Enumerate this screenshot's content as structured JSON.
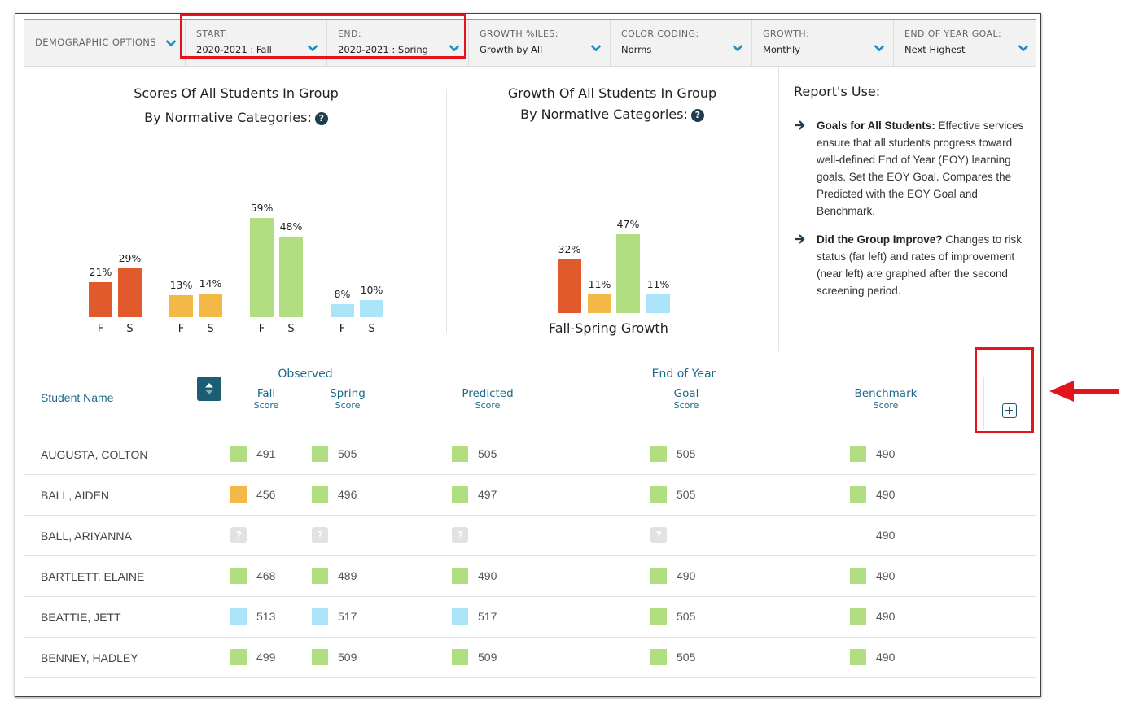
{
  "filters": {
    "demographic": {
      "label": "DEMOGRAPHIC OPTIONS"
    },
    "start": {
      "label": "START:",
      "value": "2020-2021 : Fall"
    },
    "end": {
      "label": "END:",
      "value": "2020-2021 : Spring"
    },
    "growth_percentiles": {
      "label": "GROWTH %ILES:",
      "value": "Growth by All"
    },
    "color_coding": {
      "label": "COLOR CODING:",
      "value": "Norms"
    },
    "growth": {
      "label": "GROWTH:",
      "value": "Monthly"
    },
    "eoy_goal": {
      "label": "END OF YEAR GOAL:",
      "value": "Next Highest"
    }
  },
  "colors": {
    "red": "#e05a2b",
    "yellow": "#f3b846",
    "green": "#b2de82",
    "blue": "#abe4f9",
    "accent": "#1c6a8a",
    "highlight": "#e3141b"
  },
  "scores_chart": {
    "title_line1": "Scores Of All Students In Group",
    "title_line2": "By Normative Categories:",
    "help_icon": "question-circle-icon"
  },
  "growth_chart": {
    "title_line1": "Growth Of All Students In Group",
    "title_line2": "By Normative Categories:",
    "caption": "Fall-Spring Growth",
    "help_icon": "question-circle-icon"
  },
  "chart_data": [
    {
      "type": "bar",
      "title": "Scores Of All Students In Group By Normative Categories:",
      "categories": [
        "F",
        "S",
        "F",
        "S",
        "F",
        "S",
        "F",
        "S"
      ],
      "values": [
        21,
        29,
        13,
        14,
        59,
        48,
        8,
        10
      ],
      "labels": [
        "21%",
        "29%",
        "13%",
        "14%",
        "59%",
        "48%",
        "8%",
        "10%"
      ],
      "bar_colors": [
        "#e05a2b",
        "#e05a2b",
        "#f3b846",
        "#f3b846",
        "#b2de82",
        "#b2de82",
        "#abe4f9",
        "#abe4f9"
      ],
      "ylim": [
        0,
        100
      ]
    },
    {
      "type": "bar",
      "title": "Growth Of All Students In Group By Normative Categories:",
      "xlabel": "Fall-Spring Growth",
      "values": [
        32,
        11,
        47,
        11
      ],
      "labels": [
        "32%",
        "11%",
        "47%",
        "11%"
      ],
      "bar_colors": [
        "#e05a2b",
        "#f3b846",
        "#b2de82",
        "#abe4f9"
      ],
      "ylim": [
        0,
        100
      ]
    }
  ],
  "report_use": {
    "title": "Report's Use:",
    "items": [
      {
        "bold": "Goals for All Students:",
        "text": " Effective services ensure that all students progress toward well-defined End of Year (EOY) learning goals. Set the EOY Goal. Compares the Predicted with the EOY Goal and Benchmark."
      },
      {
        "bold": "Did the Group Improve?",
        "text": " Changes to risk status (far left) and rates of improvement (near left) are graphed after the second screening period."
      }
    ]
  },
  "table": {
    "student_name_header": "Student Name",
    "observed_header": "Observed",
    "eoy_header": "End of Year",
    "score_sub": "Score",
    "columns": [
      "Fall",
      "Spring",
      "Predicted",
      "Goal",
      "Benchmark"
    ],
    "rows": [
      {
        "name": "AUGUSTA, COLTON",
        "cells": [
          [
            "491",
            "#b2de82"
          ],
          [
            "505",
            "#b2de82"
          ],
          [
            "505",
            "#b2de82"
          ],
          [
            "505",
            "#b2de82"
          ],
          [
            "490",
            "#b2de82"
          ]
        ]
      },
      {
        "name": "BALL, AIDEN",
        "cells": [
          [
            "456",
            "#f3b846"
          ],
          [
            "496",
            "#b2de82"
          ],
          [
            "497",
            "#b2de82"
          ],
          [
            "505",
            "#b2de82"
          ],
          [
            "490",
            "#b2de82"
          ]
        ]
      },
      {
        "name": "BALL, ARIYANNA",
        "cells": [
          [
            "?",
            "q"
          ],
          [
            "?",
            "q"
          ],
          [
            "?",
            "q"
          ],
          [
            "?",
            "q"
          ],
          [
            "490",
            "none"
          ]
        ]
      },
      {
        "name": "BARTLETT, ELAINE",
        "cells": [
          [
            "468",
            "#b2de82"
          ],
          [
            "489",
            "#b2de82"
          ],
          [
            "490",
            "#b2de82"
          ],
          [
            "490",
            "#b2de82"
          ],
          [
            "490",
            "#b2de82"
          ]
        ]
      },
      {
        "name": "BEATTIE, JETT",
        "cells": [
          [
            "513",
            "#abe4f9"
          ],
          [
            "517",
            "#abe4f9"
          ],
          [
            "517",
            "#abe4f9"
          ],
          [
            "505",
            "#b2de82"
          ],
          [
            "490",
            "#b2de82"
          ]
        ]
      },
      {
        "name": "BENNEY, HADLEY",
        "cells": [
          [
            "499",
            "#b2de82"
          ],
          [
            "509",
            "#b2de82"
          ],
          [
            "509",
            "#b2de82"
          ],
          [
            "505",
            "#b2de82"
          ],
          [
            "490",
            "#b2de82"
          ]
        ]
      }
    ]
  }
}
